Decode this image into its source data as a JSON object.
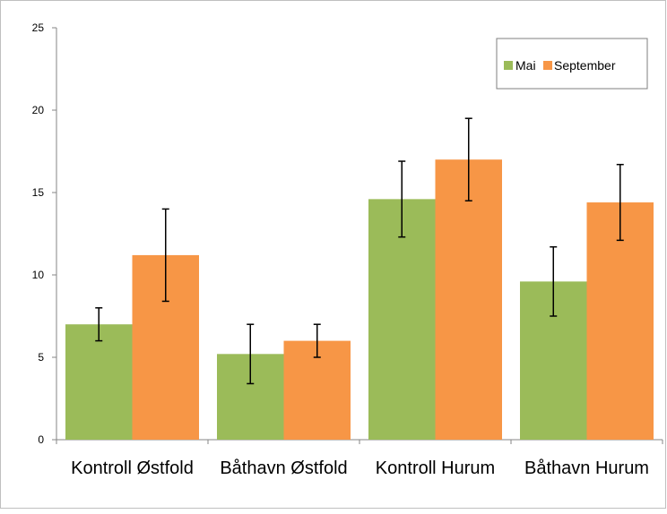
{
  "chart_data": {
    "type": "bar",
    "categories": [
      "Kontroll Østfold",
      "Båthavn Østfold",
      "Kontroll Hurum",
      "Båthavn Hurum"
    ],
    "series": [
      {
        "name": "Mai",
        "color": "#9bbb59",
        "values": [
          7.0,
          5.2,
          14.6,
          9.6
        ],
        "error": [
          1.0,
          1.8,
          2.3,
          2.1
        ]
      },
      {
        "name": "September",
        "color": "#f79646",
        "values": [
          11.2,
          6.0,
          17.0,
          14.4
        ],
        "error": [
          2.8,
          1.0,
          2.5,
          2.3
        ]
      }
    ],
    "ylim": [
      0,
      25
    ],
    "yticks": [
      "0",
      "5",
      "10",
      "15",
      "20",
      "25"
    ],
    "legend_position": "top-right",
    "grid": false,
    "error_bars": true
  }
}
